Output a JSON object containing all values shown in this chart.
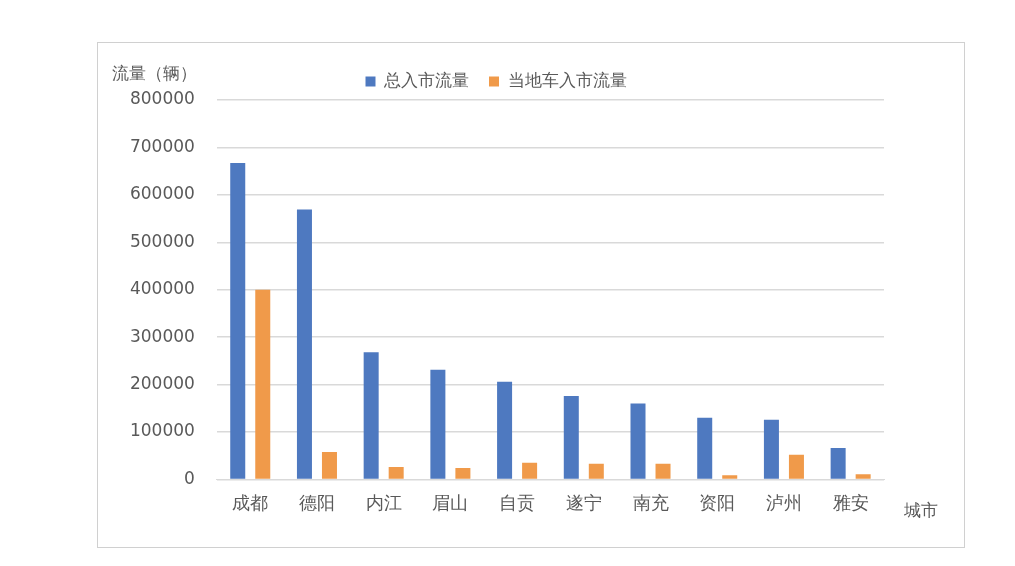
{
  "chart_data": {
    "type": "bar",
    "ylabel": "流量（辆）",
    "xlabel": "城市",
    "categories": [
      "成都",
      "德阳",
      "内江",
      "眉山",
      "自贡",
      "遂宁",
      "南充",
      "资阳",
      "泸州",
      "雅安"
    ],
    "series": [
      {
        "name": "总入市流量",
        "color": "#4e79c0",
        "values": [
          667000,
          569000,
          268000,
          231000,
          206000,
          176000,
          160000,
          130000,
          126000,
          66000
        ]
      },
      {
        "name": "当地车入市流量",
        "color": "#f09a4a",
        "values": [
          400000,
          58000,
          26000,
          24000,
          35000,
          33000,
          33000,
          9000,
          52000,
          11000
        ]
      }
    ],
    "ylim": [
      0,
      800000
    ],
    "yticks": [
      0,
      100000,
      200000,
      300000,
      400000,
      500000,
      600000,
      700000,
      800000
    ],
    "grid": "y",
    "legend": "top"
  }
}
